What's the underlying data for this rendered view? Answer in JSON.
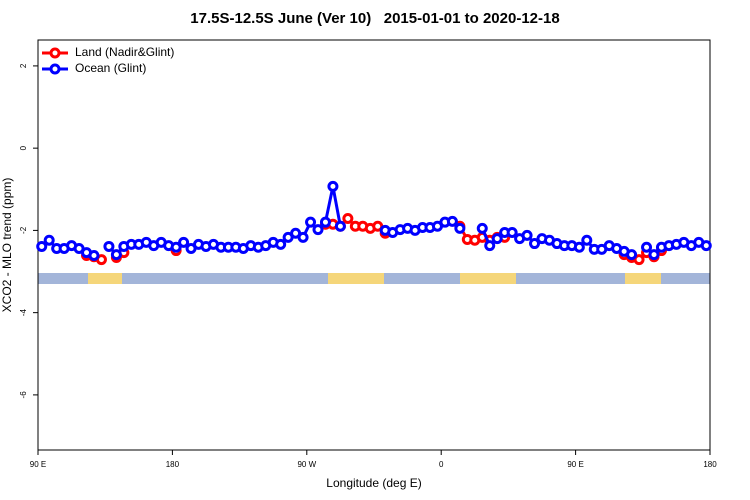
{
  "chart_data": {
    "type": "line",
    "title": "17.5S-12.5S June (Ver 10)   2015-01-01 to 2020-12-18",
    "xlabel": "Longitude (deg E)",
    "ylabel": "XCO2 - MLO trend (ppm)",
    "xlim": [
      90,
      540
    ],
    "ylim": [
      -7.34,
      2.63
    ],
    "xticks": [
      {
        "value": 90,
        "label": "90 E"
      },
      180,
      {
        "value": 270,
        "label": "90 W"
      },
      {
        "value": 360,
        "label": "0"
      },
      {
        "value": 450,
        "label": "90 E"
      },
      {
        "value": 540,
        "label": "180"
      }
    ],
    "yticks": [
      2,
      0,
      -2,
      -4,
      -6
    ],
    "legend": "top-left",
    "x": [
      92.5,
      97.5,
      102.5,
      107.5,
      112.5,
      117.5,
      122.5,
      127.5,
      132.5,
      137.5,
      142.5,
      147.5,
      152.5,
      157.5,
      162.5,
      167.5,
      172.5,
      177.5,
      182.5,
      187.5,
      192.5,
      197.5,
      202.5,
      207.5,
      212.5,
      217.5,
      222.5,
      227.5,
      232.5,
      237.5,
      242.5,
      247.5,
      252.5,
      257.5,
      262.5,
      267.5,
      272.5,
      277.5,
      282.5,
      287.5,
      292.5,
      297.5,
      302.5,
      307.5,
      312.5,
      317.5,
      322.5,
      327.5,
      332.5,
      337.5,
      342.5,
      347.5,
      352.5,
      357.5,
      362.5,
      367.5,
      372.5,
      377.5,
      382.5,
      387.5,
      392.5,
      397.5,
      402.5,
      407.5,
      412.5,
      417.5,
      422.5,
      427.5,
      432.5,
      437.5,
      442.5,
      447.5,
      452.5,
      457.5,
      462.5,
      467.5,
      472.5,
      477.5,
      482.5,
      487.5,
      492.5,
      497.5,
      502.5,
      507.5,
      512.5,
      517.5,
      522.5,
      527.5,
      532.5,
      537.5
    ],
    "series": [
      {
        "name": "Land (Nadir&Glint)",
        "color": "#ff0000",
        "values": [
          null,
          null,
          null,
          null,
          null,
          null,
          -2.61,
          -2.64,
          -2.71,
          null,
          -2.66,
          -2.54,
          null,
          null,
          null,
          null,
          null,
          null,
          -2.49,
          null,
          null,
          null,
          null,
          null,
          null,
          null,
          null,
          null,
          null,
          null,
          null,
          null,
          null,
          null,
          null,
          null,
          null,
          null,
          -1.85,
          -1.85,
          -1.9,
          -1.71,
          -1.9,
          -1.9,
          -1.95,
          -1.9,
          -2.07,
          null,
          null,
          null,
          null,
          null,
          null,
          null,
          null,
          null,
          -1.9,
          -2.22,
          -2.24,
          -2.17,
          -2.24,
          -2.17,
          -2.17,
          null,
          null,
          null,
          null,
          null,
          null,
          null,
          null,
          null,
          null,
          null,
          null,
          null,
          null,
          null,
          -2.59,
          -2.66,
          -2.71,
          -2.54,
          -2.64,
          -2.49,
          null,
          null,
          null,
          null,
          null,
          null
        ]
      },
      {
        "name": "Ocean (Glint)",
        "color": "#0000ff",
        "values": [
          -2.39,
          -2.24,
          -2.44,
          -2.44,
          -2.37,
          -2.44,
          -2.54,
          -2.61,
          null,
          -2.39,
          -2.59,
          -2.39,
          -2.34,
          -2.34,
          -2.29,
          -2.37,
          -2.29,
          -2.37,
          -2.41,
          -2.29,
          -2.44,
          -2.34,
          -2.39,
          -2.34,
          -2.41,
          -2.41,
          -2.41,
          -2.44,
          -2.37,
          -2.41,
          -2.37,
          -2.29,
          -2.34,
          -2.17,
          -2.07,
          -2.17,
          -1.8,
          -1.98,
          -1.8,
          -0.93,
          -1.9,
          null,
          null,
          null,
          null,
          null,
          -2.0,
          -2.05,
          -1.98,
          -1.95,
          -2.0,
          -1.93,
          -1.93,
          -1.9,
          -1.8,
          -1.78,
          -1.95,
          null,
          null,
          -1.95,
          -2.37,
          -2.2,
          -2.05,
          -2.05,
          -2.2,
          -2.12,
          -2.32,
          -2.2,
          -2.24,
          -2.32,
          -2.37,
          -2.37,
          -2.41,
          -2.24,
          -2.46,
          -2.46,
          -2.37,
          -2.44,
          -2.51,
          -2.59,
          null,
          -2.41,
          -2.59,
          -2.41,
          -2.37,
          -2.34,
          -2.29,
          -2.37,
          -2.29,
          -2.37
        ]
      }
    ]
  }
}
